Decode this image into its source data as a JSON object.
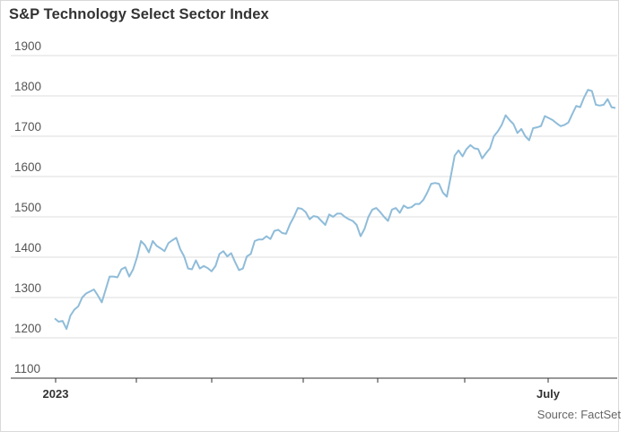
{
  "chart_data": {
    "type": "line",
    "title": "S&P Technology Select Sector Index",
    "source": "Source: FactSet",
    "xlabel": "",
    "ylabel": "",
    "ylim": [
      1100,
      1900
    ],
    "yticks": [
      1100,
      1200,
      1300,
      1400,
      1500,
      1600,
      1700,
      1800,
      1900
    ],
    "x_tick_labels": [
      "2023",
      "July"
    ],
    "grid": "horizontal",
    "line_color": "#8fbcd9",
    "series": [
      {
        "name": "",
        "values": [
          1248,
          1240,
          1242,
          1222,
          1255,
          1270,
          1278,
          1300,
          1310,
          1315,
          1320,
          1305,
          1288,
          1320,
          1352,
          1352,
          1350,
          1370,
          1375,
          1352,
          1370,
          1400,
          1440,
          1430,
          1412,
          1440,
          1428,
          1422,
          1415,
          1435,
          1442,
          1448,
          1420,
          1402,
          1372,
          1370,
          1392,
          1372,
          1378,
          1373,
          1365,
          1378,
          1408,
          1415,
          1402,
          1410,
          1388,
          1368,
          1372,
          1402,
          1408,
          1440,
          1444,
          1444,
          1452,
          1445,
          1465,
          1468,
          1460,
          1458,
          1482,
          1500,
          1522,
          1520,
          1512,
          1494,
          1502,
          1500,
          1490,
          1480,
          1506,
          1500,
          1508,
          1508,
          1500,
          1494,
          1490,
          1480,
          1452,
          1470,
          1500,
          1518,
          1522,
          1512,
          1500,
          1490,
          1518,
          1522,
          1510,
          1528,
          1522,
          1524,
          1532,
          1532,
          1542,
          1560,
          1582,
          1584,
          1582,
          1560,
          1550,
          1600,
          1652,
          1665,
          1650,
          1668,
          1678,
          1670,
          1668,
          1645,
          1658,
          1670,
          1700,
          1712,
          1728,
          1752,
          1740,
          1730,
          1708,
          1718,
          1700,
          1690,
          1720,
          1722,
          1725,
          1750,
          1745,
          1740,
          1732,
          1725,
          1728,
          1734,
          1755,
          1775,
          1772,
          1796,
          1815,
          1812,
          1778,
          1776,
          1778,
          1792,
          1772,
          1770
        ]
      }
    ]
  }
}
